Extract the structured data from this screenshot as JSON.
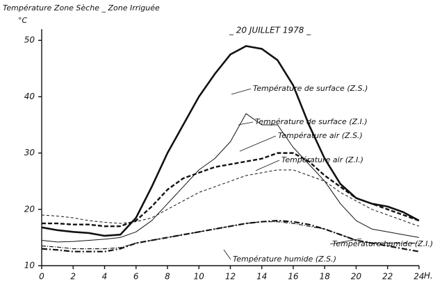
{
  "chart_data": {
    "type": "line",
    "title": "Température Zone Sèche _ Zone Irriguée",
    "subtitle": "_ 20 JUILLET 1978 _",
    "x_label": "H.",
    "y_label": "°C",
    "x": [
      0,
      1,
      2,
      3,
      4,
      5,
      6,
      7,
      8,
      9,
      10,
      11,
      12,
      13,
      14,
      15,
      16,
      17,
      18,
      19,
      20,
      21,
      22,
      23,
      24
    ],
    "xlim": [
      0,
      24
    ],
    "xticks": [
      0,
      2,
      4,
      6,
      8,
      10,
      12,
      14,
      16,
      18,
      20,
      22,
      24
    ],
    "ylim": [
      10,
      52
    ],
    "yticks": [
      10,
      20,
      30,
      40,
      50
    ],
    "series": [
      {
        "name": "Température de surface (Z.S.)",
        "color": "#111111",
        "values": [
          16.8,
          16.3,
          16,
          15.8,
          15.3,
          15.5,
          18.5,
          24,
          30,
          35,
          40,
          44,
          47.5,
          49,
          48.5,
          46.5,
          42,
          35,
          29,
          24.5,
          22,
          21,
          20.5,
          19.5,
          18
        ]
      },
      {
        "name": "Température de surface (Z.I.)",
        "color": "#111111",
        "values": [
          14.5,
          14.2,
          14.3,
          14.5,
          14.7,
          15,
          16,
          18,
          21,
          24,
          27,
          29,
          32,
          37,
          35,
          35,
          31,
          28,
          25,
          21,
          18,
          16.5,
          16,
          15.5,
          15
        ]
      },
      {
        "name": "Température air (Z.S.)",
        "color": "#111111",
        "values": [
          17.5,
          17.5,
          17.3,
          17.3,
          17,
          17,
          18,
          20.5,
          23.5,
          25.5,
          26.5,
          27.5,
          28,
          28.5,
          29,
          30,
          30,
          28.5,
          26,
          24,
          22,
          21,
          20,
          19,
          18
        ]
      },
      {
        "name": "Température air (Z.I.)",
        "color": "#111111",
        "values": [
          19,
          18.8,
          18.5,
          18,
          17.7,
          17.5,
          17.8,
          18.5,
          20,
          21.5,
          23,
          24,
          25,
          26,
          26.5,
          27,
          27,
          26,
          25,
          23,
          21.5,
          20,
          19,
          18,
          17
        ]
      },
      {
        "name": "Température humide (Z.S.)",
        "color": "#111111",
        "values": [
          13,
          12.8,
          12.5,
          12.5,
          12.5,
          13,
          14,
          14.5,
          15,
          15.5,
          16,
          16.5,
          17,
          17.5,
          17.8,
          18,
          17.8,
          17.3,
          16.5,
          15.5,
          14.5,
          14,
          13.5,
          13,
          12.5
        ]
      },
      {
        "name": "Température humide (Z.I.)",
        "color": "#111111",
        "values": [
          13.5,
          13.3,
          13,
          13,
          13,
          13.2,
          14,
          14.5,
          15,
          15.5,
          16,
          16.5,
          17,
          17.5,
          17.8,
          17.8,
          17.5,
          17,
          16.5,
          15.5,
          14.5,
          14,
          14,
          14,
          14
        ]
      }
    ]
  }
}
